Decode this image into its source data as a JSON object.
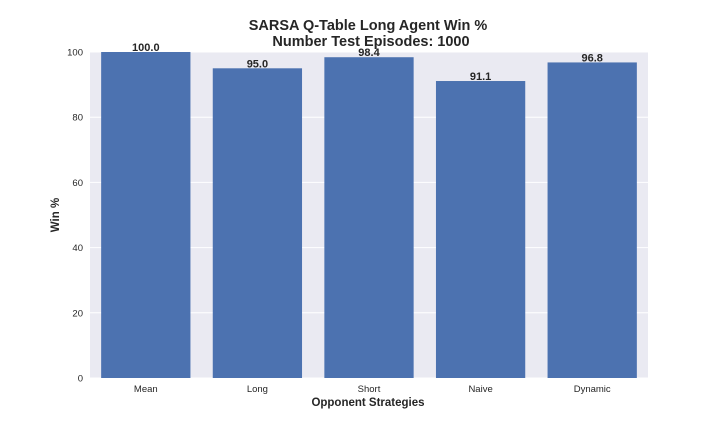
{
  "chart_data": {
    "type": "bar",
    "title": [
      "SARSA Q-Table Long Agent Win %",
      "Number Test Episodes: 1000"
    ],
    "xlabel": "Opponent Strategies",
    "ylabel": "Win %",
    "categories": [
      "Mean",
      "Long",
      "Short",
      "Naive",
      "Dynamic"
    ],
    "values": [
      100.0,
      95.0,
      98.4,
      91.1,
      96.8
    ],
    "data_labels": [
      "100.0",
      "95.0",
      "98.4",
      "91.1",
      "96.8"
    ],
    "ylim": [
      0,
      100
    ],
    "yticks": [
      "0",
      "20",
      "40",
      "60",
      "80",
      "100"
    ],
    "grid": true,
    "legend": "none",
    "colors": {
      "bar": "#4c72b0",
      "plot_background": "#eaeaf2",
      "grid": "#ffffff",
      "text": "#262626"
    }
  }
}
